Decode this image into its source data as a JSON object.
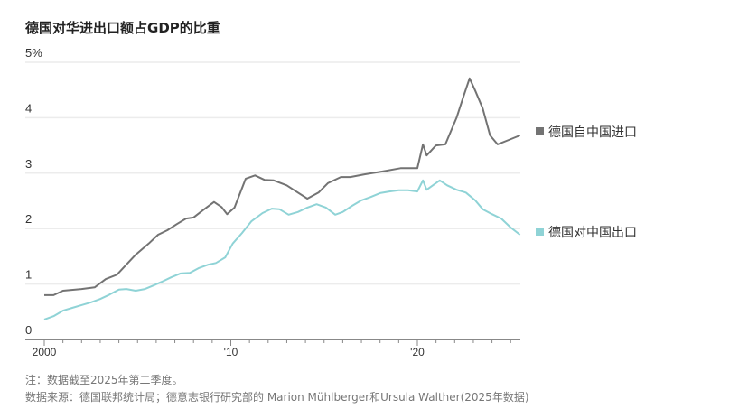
{
  "chart_data": {
    "type": "line",
    "title": "德国对华进出口额占GDP的比重",
    "xlabel": "",
    "ylabel": "",
    "xlim": [
      2000,
      2025.5
    ],
    "ylim": [
      0,
      5
    ],
    "y_ticks": [
      "0",
      "1",
      "2",
      "3",
      "4",
      "5%"
    ],
    "x_ticks": [
      {
        "value": 2000,
        "label": "2000"
      },
      {
        "value": 2010,
        "label": "'10"
      },
      {
        "value": 2020,
        "label": "'20"
      }
    ],
    "grid": true,
    "legend_placement": "right (inline labels)",
    "series": [
      {
        "name": "德国自中国进口",
        "color": "#737373",
        "x": [
          2000,
          2000.5,
          2001,
          2002,
          2002.7,
          2003.3,
          2003.9,
          2004.4,
          2004.9,
          2005.6,
          2006.1,
          2006.6,
          2007.1,
          2007.6,
          2008.0,
          2008.5,
          2009.1,
          2009.5,
          2009.8,
          2010.2,
          2010.8,
          2011.3,
          2011.8,
          2012.3,
          2013.0,
          2013.5,
          2014.1,
          2014.7,
          2015.2,
          2015.9,
          2016.4,
          2017.2,
          2018.1,
          2019.1,
          2020.0,
          2020.3,
          2020.5,
          2021.0,
          2021.5,
          2022.1,
          2022.5,
          2022.8,
          2023.1,
          2023.5,
          2023.9,
          2024.3,
          2024.9,
          2025.5
        ],
        "values": [
          0.8,
          0.8,
          0.88,
          0.91,
          0.94,
          1.09,
          1.17,
          1.35,
          1.53,
          1.73,
          1.89,
          1.97,
          2.08,
          2.18,
          2.2,
          2.33,
          2.48,
          2.39,
          2.26,
          2.38,
          2.9,
          2.96,
          2.88,
          2.87,
          2.78,
          2.67,
          2.54,
          2.65,
          2.82,
          2.93,
          2.93,
          2.98,
          3.03,
          3.09,
          3.09,
          3.52,
          3.32,
          3.5,
          3.52,
          4.0,
          4.41,
          4.71,
          4.49,
          4.17,
          3.68,
          3.52,
          3.6,
          3.68
        ]
      },
      {
        "name": "德国对中国出口",
        "color": "#8fd3d6",
        "x": [
          2000,
          2000.5,
          2001,
          2001.5,
          2002,
          2002.5,
          2003,
          2003.5,
          2004,
          2004.4,
          2004.9,
          2005.4,
          2005.9,
          2006.3,
          2006.8,
          2007.3,
          2007.8,
          2008.3,
          2008.8,
          2009.2,
          2009.7,
          2010.1,
          2010.6,
          2011.1,
          2011.7,
          2012.2,
          2012.6,
          2013.1,
          2013.6,
          2014.1,
          2014.6,
          2015.1,
          2015.6,
          2016.0,
          2016.5,
          2017.0,
          2017.5,
          2018.0,
          2018.5,
          2019.0,
          2019.5,
          2020.0,
          2020.3,
          2020.5,
          2021.2,
          2021.6,
          2022.1,
          2022.6,
          2023.1,
          2023.5,
          2024.0,
          2024.5,
          2025.0,
          2025.5
        ],
        "values": [
          0.36,
          0.42,
          0.52,
          0.57,
          0.62,
          0.67,
          0.73,
          0.81,
          0.9,
          0.91,
          0.88,
          0.91,
          0.98,
          1.04,
          1.12,
          1.19,
          1.2,
          1.29,
          1.35,
          1.38,
          1.48,
          1.73,
          1.92,
          2.13,
          2.28,
          2.36,
          2.35,
          2.25,
          2.3,
          2.38,
          2.44,
          2.38,
          2.25,
          2.3,
          2.41,
          2.51,
          2.57,
          2.64,
          2.67,
          2.69,
          2.69,
          2.67,
          2.87,
          2.7,
          2.87,
          2.78,
          2.7,
          2.65,
          2.51,
          2.35,
          2.26,
          2.18,
          2.02,
          1.89
        ]
      }
    ]
  },
  "footnotes": {
    "note": "注：数据截至2025年第二季度。",
    "source": "数据来源：德国联邦统计局；德意志银行研究部的 Marion Mühlberger和Ursula Walther(2025年数据)"
  }
}
